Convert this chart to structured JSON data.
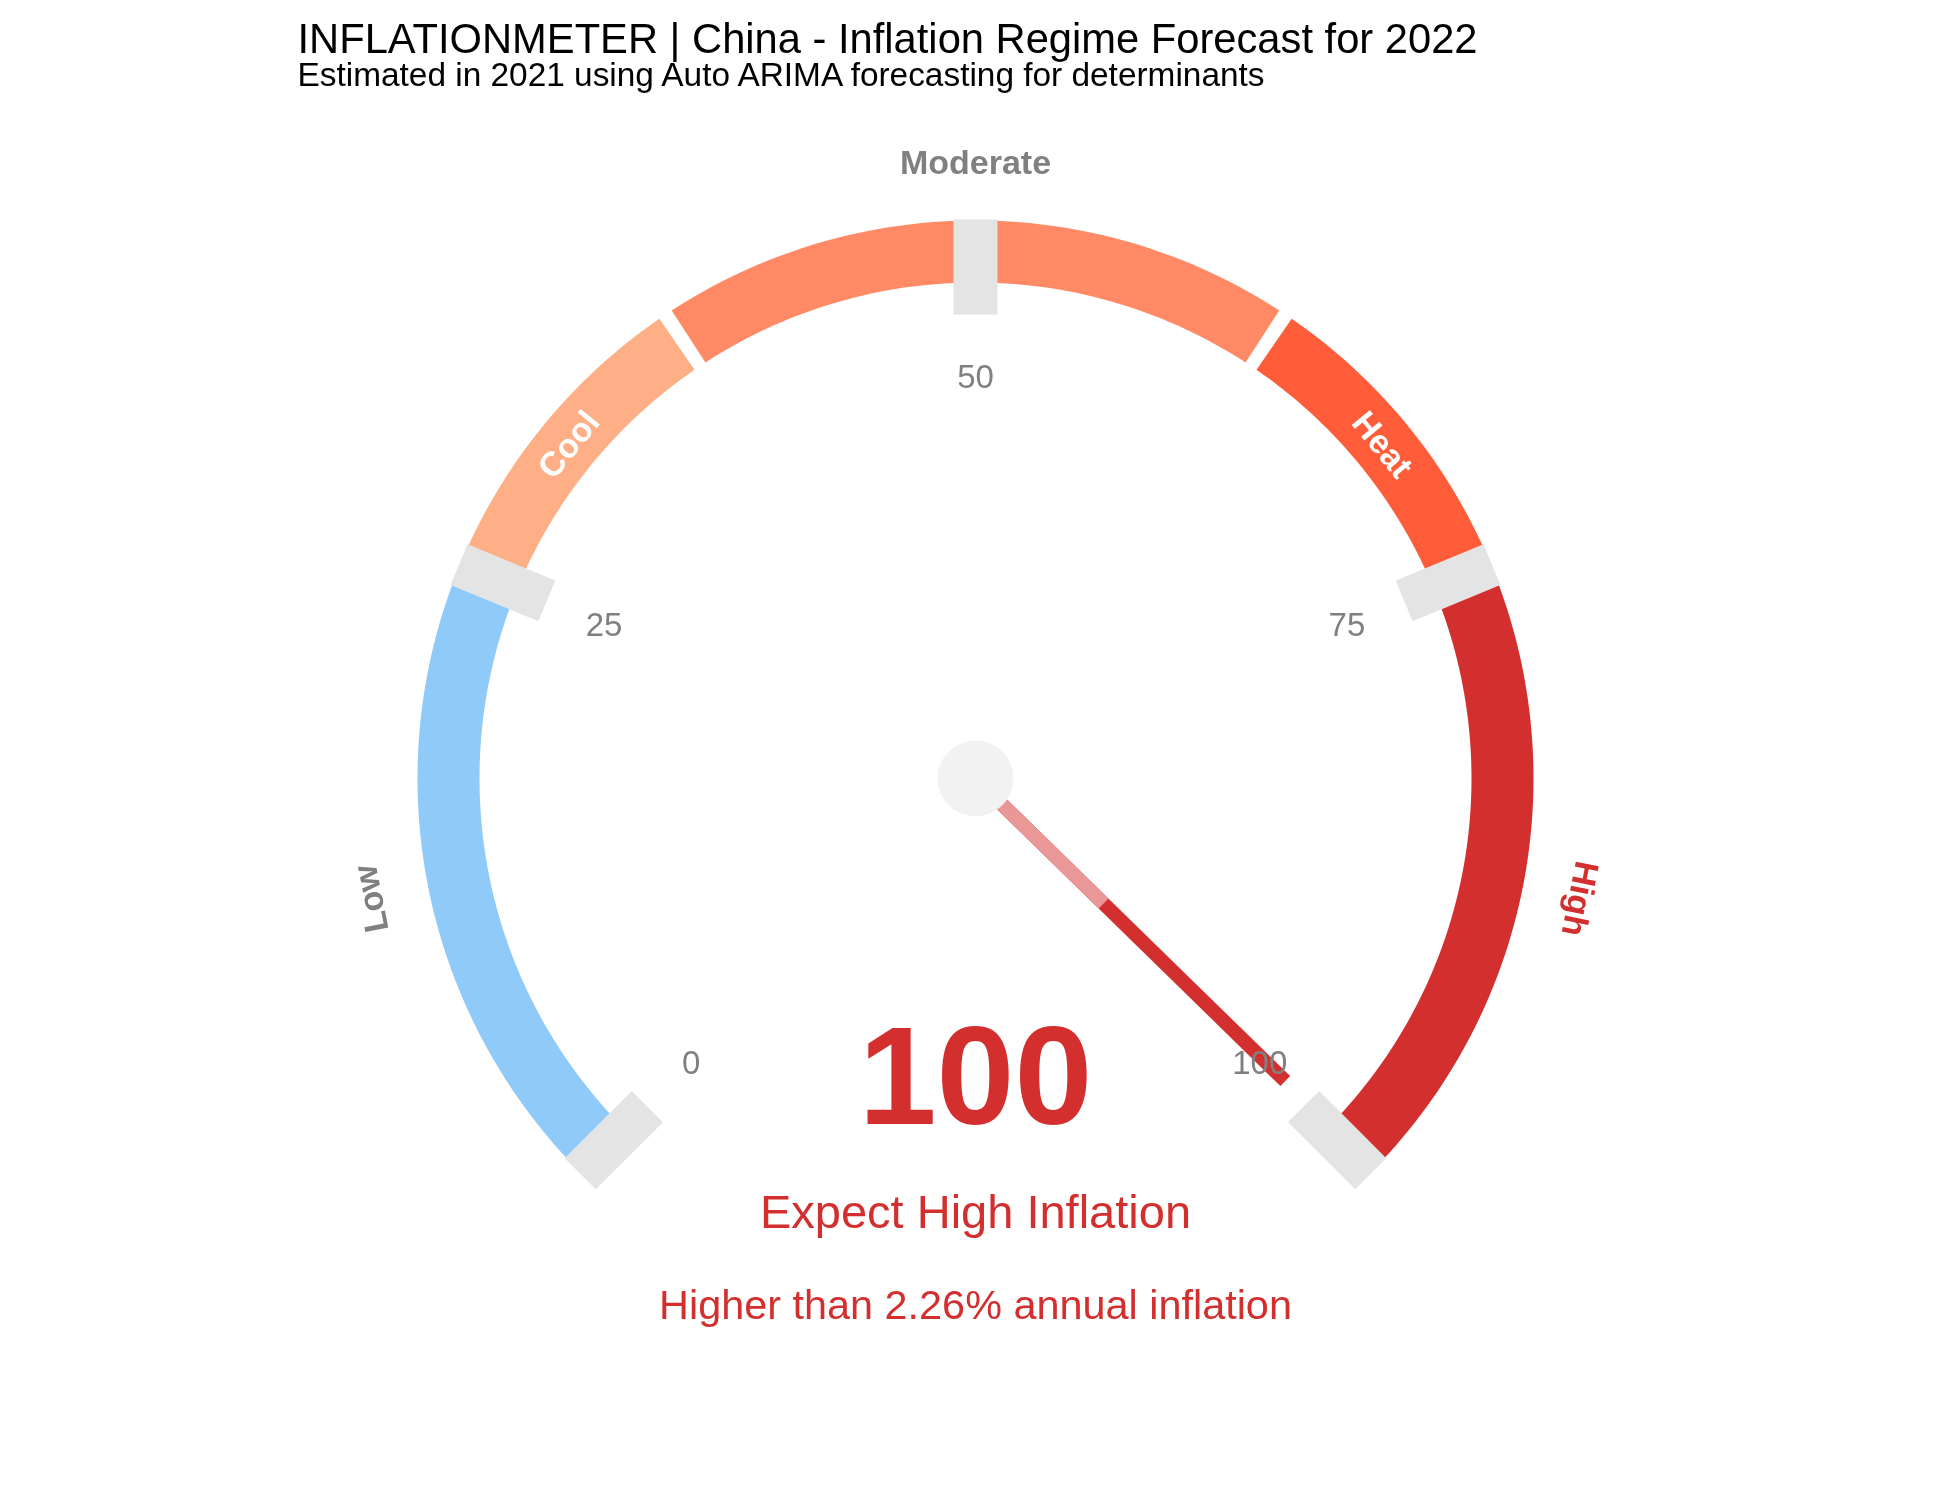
{
  "chart_data": {
    "type": "donut",
    "title": "INFLATIONMETER | China - Inflation Regime Forecast for 2022",
    "subtitle": "Estimated in 2021 using Auto ARIMA forecasting for determinants",
    "categories": [
      "Low",
      "Cool",
      "Moderate",
      "Heat",
      "High"
    ],
    "values": [
      25,
      12.5,
      25,
      12.5,
      25
    ],
    "colors": [
      "#90caf9",
      "#ffaf85",
      "#ff8a65",
      "#ff5c3a",
      "#d32f2f"
    ],
    "needle": "High",
    "annotations": [
      "0",
      "25",
      "50",
      "75",
      "100",
      "100",
      "Expect High Inflation",
      "Higher than 2.26% annual inflation"
    ]
  }
}
